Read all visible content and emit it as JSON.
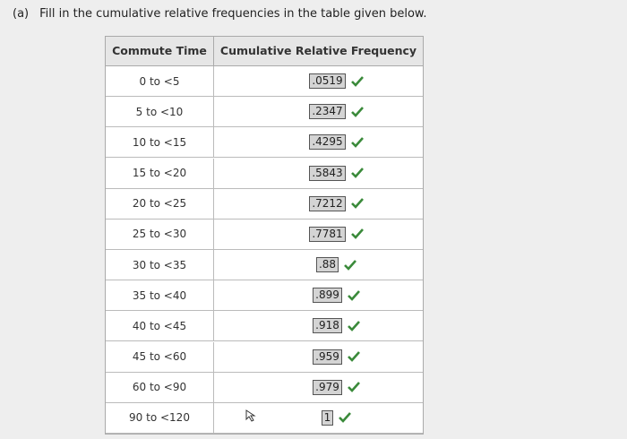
{
  "question": {
    "label": "(a)",
    "text": "Fill in the cumulative relative frequencies in the table given below."
  },
  "table": {
    "headers": [
      "Commute Time",
      "Cumulative Relative Frequency"
    ],
    "rows": [
      [
        "0 to <5",
        ".0519"
      ],
      [
        "5 to <10",
        ".2347"
      ],
      [
        "10 to <15",
        ".4295"
      ],
      [
        "15 to <20",
        ".5843"
      ],
      [
        "20 to <25",
        ".7212"
      ],
      [
        "25 to <30",
        ".7781"
      ],
      [
        "30 to <35",
        ".88"
      ],
      [
        "35 to <40",
        ".899"
      ],
      [
        "40 to <45",
        ".918"
      ],
      [
        "45 to <60",
        ".959"
      ],
      [
        "60 to <90",
        ".979"
      ],
      [
        "90 to <120",
        "1"
      ]
    ]
  }
}
